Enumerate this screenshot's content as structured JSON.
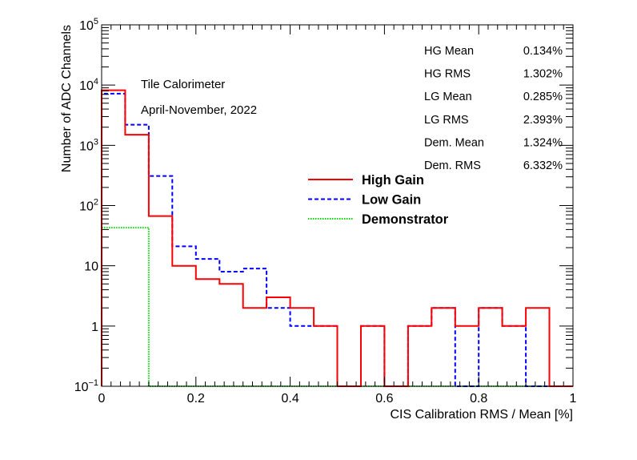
{
  "chart_data": {
    "type": "histogram",
    "title": "",
    "xlabel": "CIS Calibration RMS / Mean [%]",
    "ylabel": "Number of ADC Channels",
    "xlim": [
      0,
      1
    ],
    "ylim": [
      0.1,
      100000
    ],
    "yscale": "log",
    "bin_edges": [
      0,
      0.05,
      0.1,
      0.15,
      0.2,
      0.25,
      0.3,
      0.35,
      0.4,
      0.45,
      0.5,
      0.55,
      0.6,
      0.65,
      0.7,
      0.75,
      0.8,
      0.85,
      0.9,
      0.95,
      1.0
    ],
    "x_ticks": [
      {
        "value": 0,
        "label": "0"
      },
      {
        "value": 0.2,
        "label": "0.2"
      },
      {
        "value": 0.4,
        "label": "0.4"
      },
      {
        "value": 0.6,
        "label": "0.6"
      },
      {
        "value": 0.8,
        "label": "0.8"
      },
      {
        "value": 1,
        "label": "1"
      }
    ],
    "y_ticks": [
      {
        "value": 0.1,
        "base": "10",
        "exp": "−1"
      },
      {
        "value": 1,
        "base": "1",
        "exp": ""
      },
      {
        "value": 10,
        "base": "10",
        "exp": ""
      },
      {
        "value": 100,
        "base": "10",
        "exp": "2"
      },
      {
        "value": 1000,
        "base": "10",
        "exp": "3"
      },
      {
        "value": 10000,
        "base": "10",
        "exp": "4"
      },
      {
        "value": 100000,
        "base": "10",
        "exp": "5"
      }
    ],
    "series": [
      {
        "name": "High Gain",
        "color": "#ff0000",
        "style": "solid",
        "values": [
          8200,
          1500,
          67,
          10,
          6,
          5,
          2,
          3,
          2,
          1,
          0,
          1,
          0,
          1,
          2,
          1,
          2,
          1,
          2,
          0
        ]
      },
      {
        "name": "Low Gain",
        "color": "#0000ff",
        "style": "dashed",
        "values": [
          7200,
          2200,
          310,
          21,
          13,
          8,
          9,
          2,
          1,
          1,
          0,
          1,
          0,
          1,
          2,
          0,
          2,
          1,
          0,
          0
        ]
      },
      {
        "name": "Demonstrator",
        "color": "#00dd00",
        "style": "dotted",
        "values": [
          43,
          43,
          0,
          0,
          0,
          0,
          0,
          0,
          0,
          0,
          0,
          0,
          0,
          0,
          0,
          0,
          0,
          0,
          0,
          0
        ]
      }
    ],
    "annotations": [
      "Tile Calorimeter",
      "April-November, 2022"
    ],
    "stats": [
      {
        "label": "HG Mean",
        "value": "0.134%"
      },
      {
        "label": "HG RMS",
        "value": "1.302%"
      },
      {
        "label": "LG Mean",
        "value": "0.285%"
      },
      {
        "label": "LG RMS",
        "value": "2.393%"
      },
      {
        "label": "Dem. Mean",
        "value": "1.324%"
      },
      {
        "label": "Dem. RMS",
        "value": "6.332%"
      }
    ],
    "legend": [
      {
        "label": "High Gain",
        "color": "#ff0000",
        "style": "solid"
      },
      {
        "label": "Low Gain",
        "color": "#0000ff",
        "style": "dashed"
      },
      {
        "label": "Demonstrator",
        "color": "#00dd00",
        "style": "dotted"
      }
    ]
  }
}
